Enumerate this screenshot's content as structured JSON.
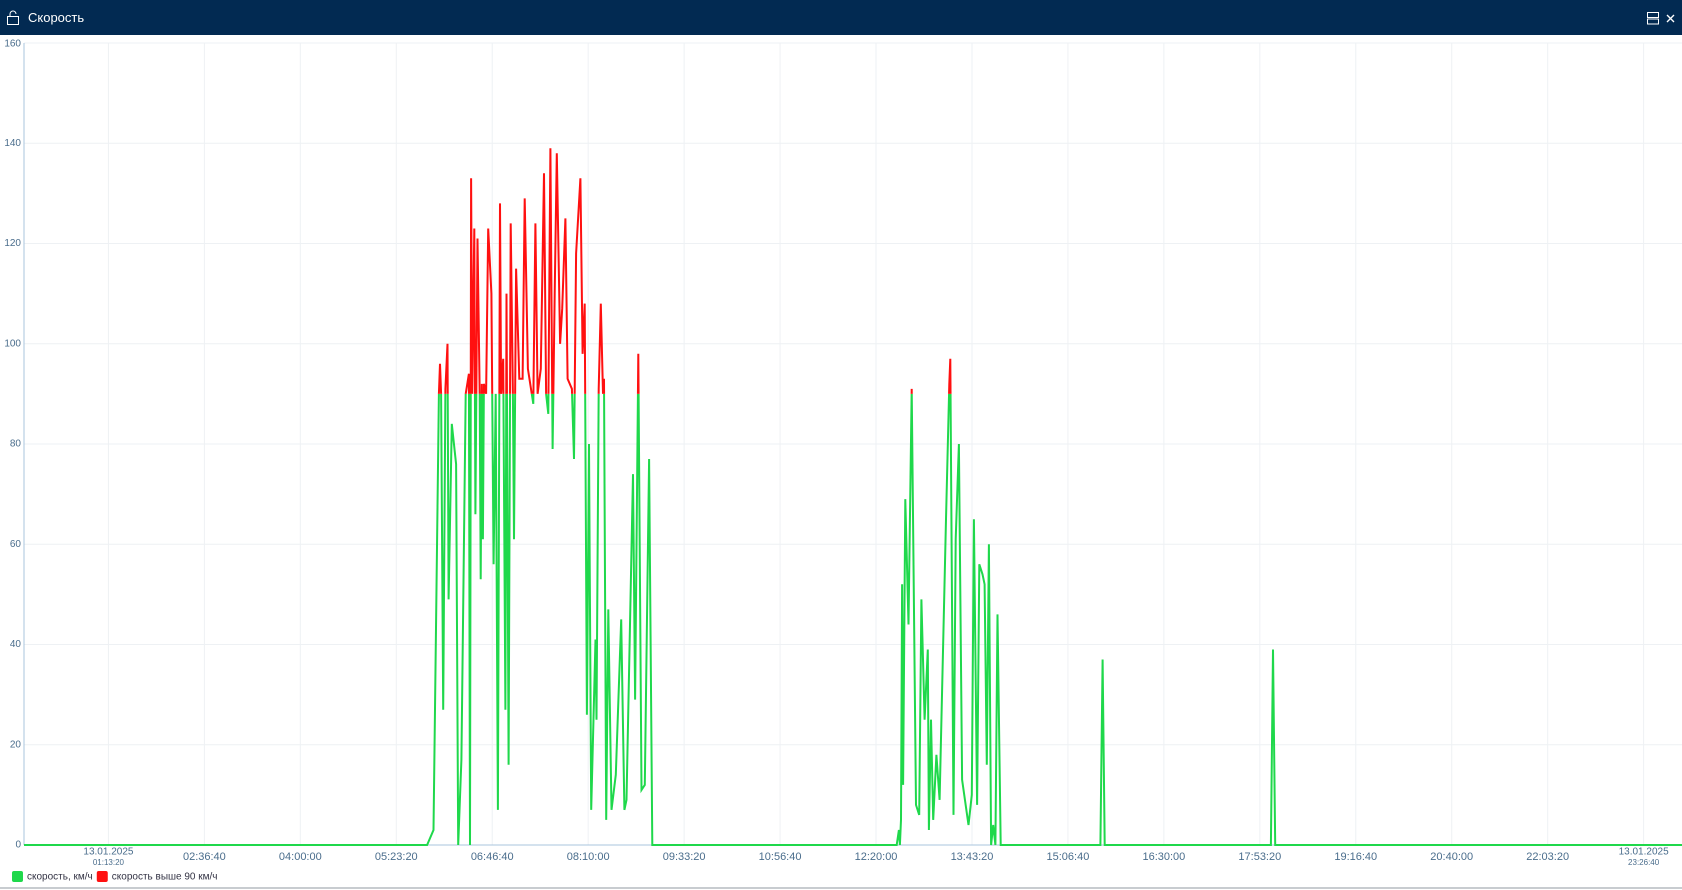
{
  "window": {
    "title": "Скорость"
  },
  "chart_data": {
    "type": "line",
    "x": [
      0,
      21007,
      21342,
      21622,
      21678,
      21733,
      21845,
      21957,
      22069,
      22125,
      22292,
      22516,
      22627,
      22795,
      23018,
      23186,
      23242,
      23298,
      23354,
      23465,
      23521,
      23633,
      23745,
      23801,
      23856,
      23912,
      23968,
      24080,
      24192,
      24359,
      24471,
      24583,
      24695,
      24806,
      24862,
      24974,
      25086,
      25142,
      25253,
      25365,
      25477,
      25533,
      25644,
      25812,
      25980,
      26091,
      26259,
      26538,
      26650,
      26762,
      26929,
      27097,
      27209,
      27320,
      27432,
      27544,
      27656,
      27767,
      27935,
      28047,
      28214,
      28326,
      28550,
      28661,
      28773,
      28997,
      29108,
      29220,
      29332,
      29443,
      29555,
      29779,
      29835,
      29946,
      30058,
      30170,
      30226,
      30337,
      30449,
      30617,
      30840,
      31120,
      31287,
      31399,
      31734,
      31846,
      32014,
      32181,
      32349,
      32572,
      32740,
      45478,
      45590,
      45646,
      45702,
      45758,
      45813,
      45925,
      46093,
      46260,
      46484,
      46651,
      46763,
      46931,
      47098,
      47154,
      47266,
      47378,
      47545,
      47713,
      48048,
      48216,
      48272,
      48439,
      48551,
      48719,
      48886,
      49221,
      49389,
      49501,
      49668,
      49780,
      49948,
      50060,
      50171,
      50283,
      50395,
      50506,
      50618,
      50730,
      50898,
      56093,
      56205,
      56317,
      64977,
      65089,
      65200,
      86400
    ],
    "series": [
      {
        "name": "скорость, км/ч",
        "color": "#1fd84b",
        "values": [
          0,
          0,
          3,
          90,
          96,
          90,
          27,
          91,
          100,
          49,
          84,
          76,
          0,
          17,
          90,
          94,
          0,
          133,
          90,
          123,
          66,
          121,
          90,
          53,
          92,
          61,
          92,
          90,
          123,
          110,
          56,
          90,
          7,
          128,
          90,
          97,
          27,
          110,
          16,
          124,
          90,
          61,
          115,
          93,
          93,
          129,
          95,
          88,
          124,
          90,
          95,
          134,
          90,
          86,
          139,
          79,
          110,
          138,
          100,
          107,
          125,
          93,
          91,
          77,
          118,
          133,
          98,
          108,
          26,
          80,
          7,
          41,
          25,
          91,
          108,
          90,
          93,
          5,
          47,
          7,
          14,
          45,
          7,
          9,
          74,
          29,
          98,
          11,
          12,
          77,
          0,
          0,
          3,
          0,
          5,
          52,
          12,
          69,
          44,
          91,
          8,
          6,
          49,
          25,
          39,
          3,
          25,
          5,
          18,
          9,
          65,
          92,
          97,
          6,
          61,
          80,
          13,
          4,
          10,
          65,
          8,
          56,
          54,
          52,
          16,
          60,
          0,
          4,
          0,
          46,
          0,
          0,
          37,
          0,
          0,
          39,
          0,
          0
        ]
      }
    ],
    "threshold": {
      "value": 90,
      "name": "скорость выше 90 км/ч",
      "color": "#ff1010"
    },
    "xlim": [
      0,
      86400
    ],
    "xticks": [
      {
        "value": 4400,
        "label": "01:13:20",
        "date": "13.01.2025"
      },
      {
        "value": 9400,
        "label": "02:36:40"
      },
      {
        "value": 14400,
        "label": "04:00:00"
      },
      {
        "value": 19400,
        "label": "05:23:20"
      },
      {
        "value": 24400,
        "label": "06:46:40"
      },
      {
        "value": 29400,
        "label": "08:10:00"
      },
      {
        "value": 34400,
        "label": "09:33:20"
      },
      {
        "value": 39400,
        "label": "10:56:40"
      },
      {
        "value": 44400,
        "label": "12:20:00"
      },
      {
        "value": 49400,
        "label": "13:43:20"
      },
      {
        "value": 54400,
        "label": "15:06:40"
      },
      {
        "value": 59400,
        "label": "16:30:00"
      },
      {
        "value": 64400,
        "label": "17:53:20"
      },
      {
        "value": 69400,
        "label": "19:16:40"
      },
      {
        "value": 74400,
        "label": "20:40:00"
      },
      {
        "value": 79400,
        "label": "22:03:20"
      },
      {
        "value": 84400,
        "label": "23:26:40",
        "date": "13.01.2025"
      }
    ],
    "ylim": [
      0,
      160
    ],
    "yticks": [
      0,
      20,
      40,
      60,
      80,
      100,
      120,
      140,
      160
    ],
    "grid": true
  }
}
